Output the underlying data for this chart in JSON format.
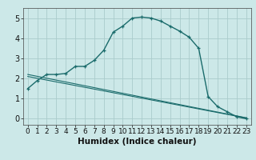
{
  "title": "",
  "xlabel": "Humidex (Indice chaleur)",
  "bg_color": "#cce8e8",
  "grid_color": "#aacccc",
  "line_color": "#1a6b6b",
  "xlim": [
    -0.5,
    23.5
  ],
  "ylim": [
    -0.3,
    5.5
  ],
  "xticks": [
    0,
    1,
    2,
    3,
    4,
    5,
    6,
    7,
    8,
    9,
    10,
    11,
    12,
    13,
    14,
    15,
    16,
    17,
    18,
    19,
    20,
    21,
    22,
    23
  ],
  "yticks": [
    0,
    1,
    2,
    3,
    4,
    5
  ],
  "curve1_x": [
    0,
    1,
    2,
    3,
    4,
    5,
    6,
    7,
    8,
    9,
    10,
    11,
    12,
    13,
    14,
    15,
    16,
    17,
    18,
    19,
    20,
    21,
    22,
    23
  ],
  "curve1_y": [
    1.5,
    1.9,
    2.2,
    2.2,
    2.25,
    2.6,
    2.6,
    2.9,
    3.4,
    4.3,
    4.6,
    5.0,
    5.05,
    5.0,
    4.85,
    4.6,
    4.35,
    4.05,
    3.5,
    1.1,
    0.6,
    0.35,
    0.1,
    0.0
  ],
  "curve2_x": [
    0,
    23
  ],
  "curve2_y": [
    2.2,
    0.05
  ],
  "curve3_x": [
    0,
    23
  ],
  "curve3_y": [
    2.1,
    0.04
  ],
  "xlabel_fontsize": 7.5,
  "tick_fontsize": 6.5
}
